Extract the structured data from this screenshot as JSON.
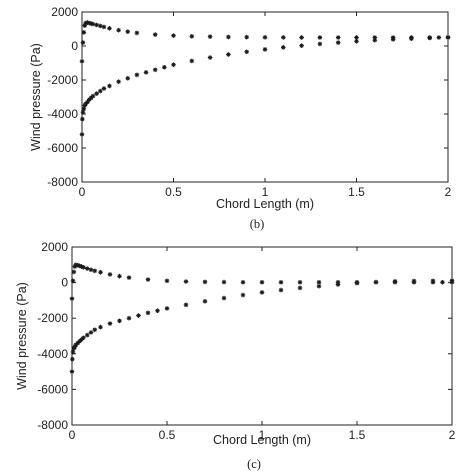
{
  "chart_data": [
    {
      "type": "scatter",
      "panel_label": "(b)",
      "title": "",
      "xlabel": "Chord Length (m)",
      "ylabel": "Wind pressure (Pa)",
      "xlim": [
        0,
        2
      ],
      "ylim": [
        -8000,
        2000
      ],
      "xticks": [
        "0",
        "0.5",
        "1",
        "1.5",
        "2"
      ],
      "yticks": [
        "2000",
        "0",
        "-2000",
        "-4000",
        "-6000",
        "-8000"
      ],
      "grid": false,
      "legend": "none",
      "marker_color": "#1a1a1a",
      "series": [
        {
          "name": "",
          "x": [
            0.0,
            0.005,
            0.01,
            0.015,
            0.02,
            0.03,
            0.04,
            0.05,
            0.06,
            0.08,
            0.1,
            0.12,
            0.15,
            0.2,
            0.25,
            0.3,
            0.4,
            0.5,
            0.6,
            0.7,
            0.8,
            0.9,
            1.0,
            1.1,
            1.2,
            1.3,
            1.4,
            1.5,
            1.6,
            1.7,
            1.8,
            1.9,
            1.95,
            2.0
          ],
          "y": [
            -900,
            200,
            800,
            1200,
            1350,
            1380,
            1350,
            1320,
            1290,
            1240,
            1180,
            1120,
            1040,
            930,
            840,
            770,
            670,
            610,
            570,
            550,
            530,
            520,
            510,
            505,
            500,
            500,
            500,
            500,
            500,
            500,
            500,
            500,
            500,
            500
          ]
        },
        {
          "name": "",
          "x": [
            0.0,
            0.002,
            0.005,
            0.01,
            0.015,
            0.02,
            0.03,
            0.04,
            0.05,
            0.06,
            0.08,
            0.1,
            0.12,
            0.15,
            0.2,
            0.25,
            0.3,
            0.35,
            0.4,
            0.45,
            0.5,
            0.6,
            0.7,
            0.8,
            0.9,
            1.0,
            1.1,
            1.2,
            1.3,
            1.4,
            1.5,
            1.6,
            1.7,
            1.8,
            1.9,
            2.0
          ],
          "y": [
            -5200,
            -4300,
            -3900,
            -3700,
            -3500,
            -3400,
            -3300,
            -3150,
            -3050,
            -2950,
            -2800,
            -2650,
            -2500,
            -2350,
            -2100,
            -1900,
            -1700,
            -1550,
            -1400,
            -1250,
            -1100,
            -880,
            -680,
            -500,
            -340,
            -200,
            -80,
            20,
            120,
            200,
            280,
            340,
            390,
            430,
            470,
            520
          ]
        }
      ]
    },
    {
      "type": "scatter",
      "panel_label": "(c)",
      "title": "",
      "xlabel": "Chord Length (m)",
      "ylabel": "Wind pressure (Pa)",
      "xlim": [
        0,
        2
      ],
      "ylim": [
        -8000,
        2000
      ],
      "xticks": [
        "0",
        "0.5",
        "1",
        "1.5",
        "2"
      ],
      "yticks": [
        "2000",
        "0",
        "-2000",
        "-4000",
        "-6000",
        "-8000"
      ],
      "grid": false,
      "legend": "none",
      "marker_color": "#1a1a1a",
      "series": [
        {
          "name": "",
          "x": [
            0.0,
            0.005,
            0.01,
            0.015,
            0.02,
            0.03,
            0.04,
            0.05,
            0.06,
            0.08,
            0.1,
            0.12,
            0.15,
            0.2,
            0.25,
            0.3,
            0.4,
            0.5,
            0.6,
            0.7,
            0.8,
            0.9,
            1.0,
            1.1,
            1.2,
            1.3,
            1.4,
            1.5,
            1.6,
            1.7,
            1.8,
            1.9,
            1.95,
            2.0
          ],
          "y": [
            -900,
            100,
            600,
            900,
            1000,
            980,
            940,
            900,
            860,
            790,
            720,
            660,
            580,
            460,
            360,
            280,
            170,
            100,
            60,
            40,
            30,
            20,
            20,
            20,
            20,
            20,
            20,
            20,
            20,
            20,
            20,
            20,
            20,
            20
          ]
        },
        {
          "name": "",
          "x": [
            0.0,
            0.002,
            0.005,
            0.01,
            0.015,
            0.02,
            0.03,
            0.04,
            0.05,
            0.06,
            0.08,
            0.1,
            0.12,
            0.15,
            0.2,
            0.25,
            0.3,
            0.35,
            0.4,
            0.45,
            0.5,
            0.6,
            0.7,
            0.8,
            0.9,
            1.0,
            1.1,
            1.2,
            1.3,
            1.4,
            1.5,
            1.6,
            1.7,
            1.8,
            1.9,
            2.0
          ],
          "y": [
            -5000,
            -4300,
            -3900,
            -3700,
            -3600,
            -3500,
            -3400,
            -3300,
            -3200,
            -3100,
            -2950,
            -2800,
            -2650,
            -2500,
            -2300,
            -2150,
            -2000,
            -1850,
            -1700,
            -1580,
            -1450,
            -1250,
            -1050,
            -870,
            -700,
            -550,
            -420,
            -300,
            -200,
            -110,
            -30,
            30,
            70,
            90,
            100,
            110
          ]
        }
      ]
    }
  ]
}
